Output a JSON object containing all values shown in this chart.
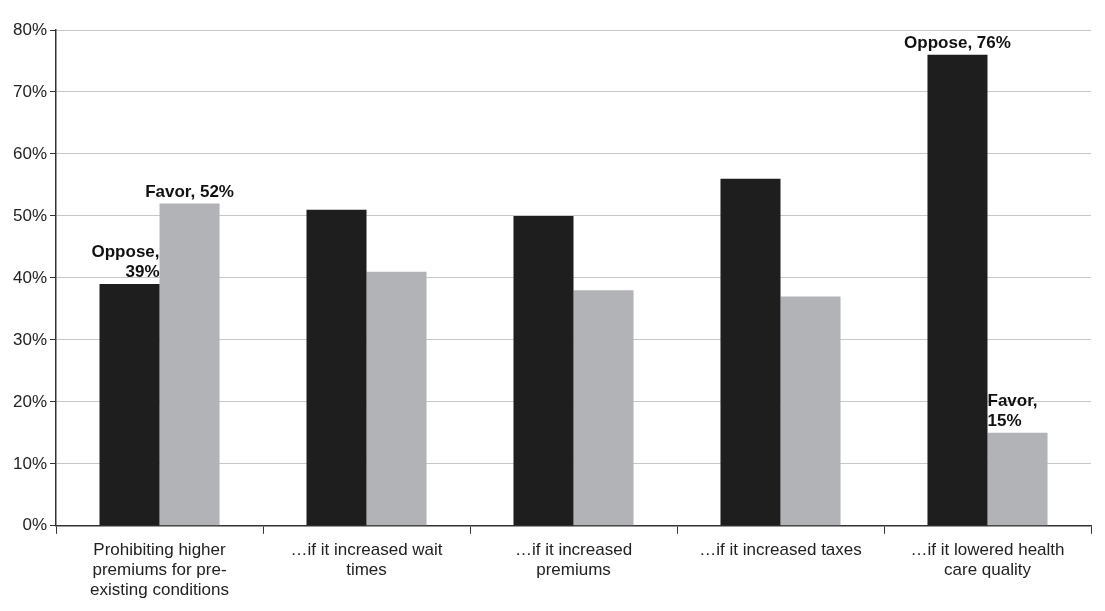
{
  "chart_data": {
    "type": "bar",
    "categories": [
      "Prohibiting higher premiums for pre-existing conditions",
      "…if it increased wait times",
      "…if it increased premiums",
      "…if it increased taxes",
      "…if it lowered health care quality"
    ],
    "series": [
      {
        "color": "#1e1e1e",
        "values": [
          39,
          51,
          50,
          56,
          76
        ],
        "value_labels": [
          "Oppose, 39%",
          null,
          null,
          null,
          "Oppose, 76%"
        ]
      },
      {
        "color": "#b2b3b6",
        "values": [
          52,
          41,
          38,
          37,
          15
        ],
        "value_labels": [
          "Favor, 52%",
          null,
          null,
          null,
          "Favor, 15%"
        ]
      }
    ],
    "ylim": [
      0,
      80
    ],
    "yticks": [
      {
        "value": 0,
        "label": "0%"
      },
      {
        "value": 10,
        "label": "10%"
      },
      {
        "value": 20,
        "label": "20%"
      },
      {
        "value": 30,
        "label": "30%"
      },
      {
        "value": 40,
        "label": "40%"
      },
      {
        "value": 50,
        "label": "50%"
      },
      {
        "value": 60,
        "label": "60%"
      },
      {
        "value": 70,
        "label": "70%"
      },
      {
        "value": 80,
        "label": "80%"
      }
    ],
    "grid": "y",
    "legend": false
  }
}
